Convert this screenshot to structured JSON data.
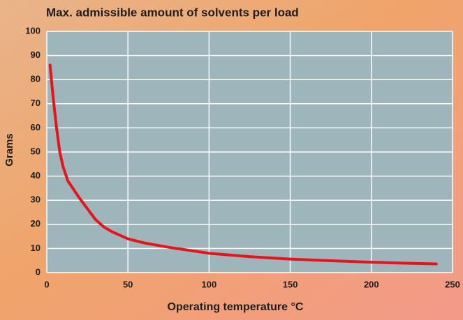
{
  "chart_data": {
    "type": "line",
    "title": "Max. admissible amount of solvents per load",
    "x_label": "Operating temperature °C",
    "y_label": "Grams",
    "x": [
      2,
      4,
      6,
      8,
      10,
      13,
      16,
      20,
      25,
      30,
      35,
      40,
      50,
      60,
      75,
      100,
      125,
      150,
      175,
      200,
      220,
      240
    ],
    "values": [
      86,
      72,
      60,
      50,
      44,
      38,
      35,
      31,
      26.5,
      22,
      19,
      17,
      14,
      12.3,
      10.5,
      8,
      6.6,
      5.6,
      4.9,
      4.3,
      3.9,
      3.6
    ],
    "color": "#e8141b",
    "xlim": [
      0,
      250
    ],
    "xticks": [
      0,
      50,
      100,
      150,
      200,
      250
    ],
    "ylim": [
      0,
      100
    ],
    "yticks": [
      0,
      10,
      20,
      30,
      40,
      50,
      60,
      70,
      80,
      90,
      100
    ],
    "grid": true
  }
}
